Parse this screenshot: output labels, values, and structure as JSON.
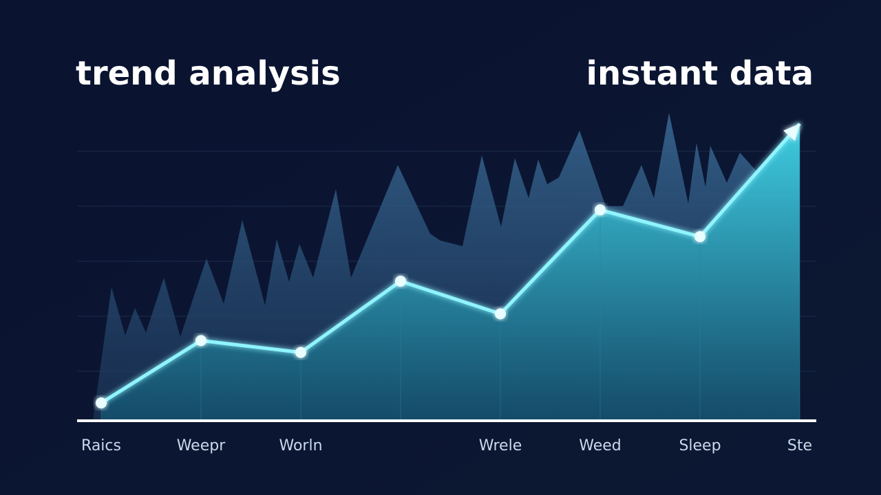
{
  "chart_data": {
    "type": "line",
    "title": "trend analysis",
    "subtitle": "instant data",
    "categories": [
      "Raics",
      "Weepr",
      "Worln",
      null,
      "Wrele",
      "Weed",
      "Sleep",
      "Ste"
    ],
    "values": [
      6,
      27,
      23,
      47,
      36,
      71,
      62,
      100
    ],
    "color": "#8ff4ff",
    "ylim": [
      0,
      100
    ]
  }
}
